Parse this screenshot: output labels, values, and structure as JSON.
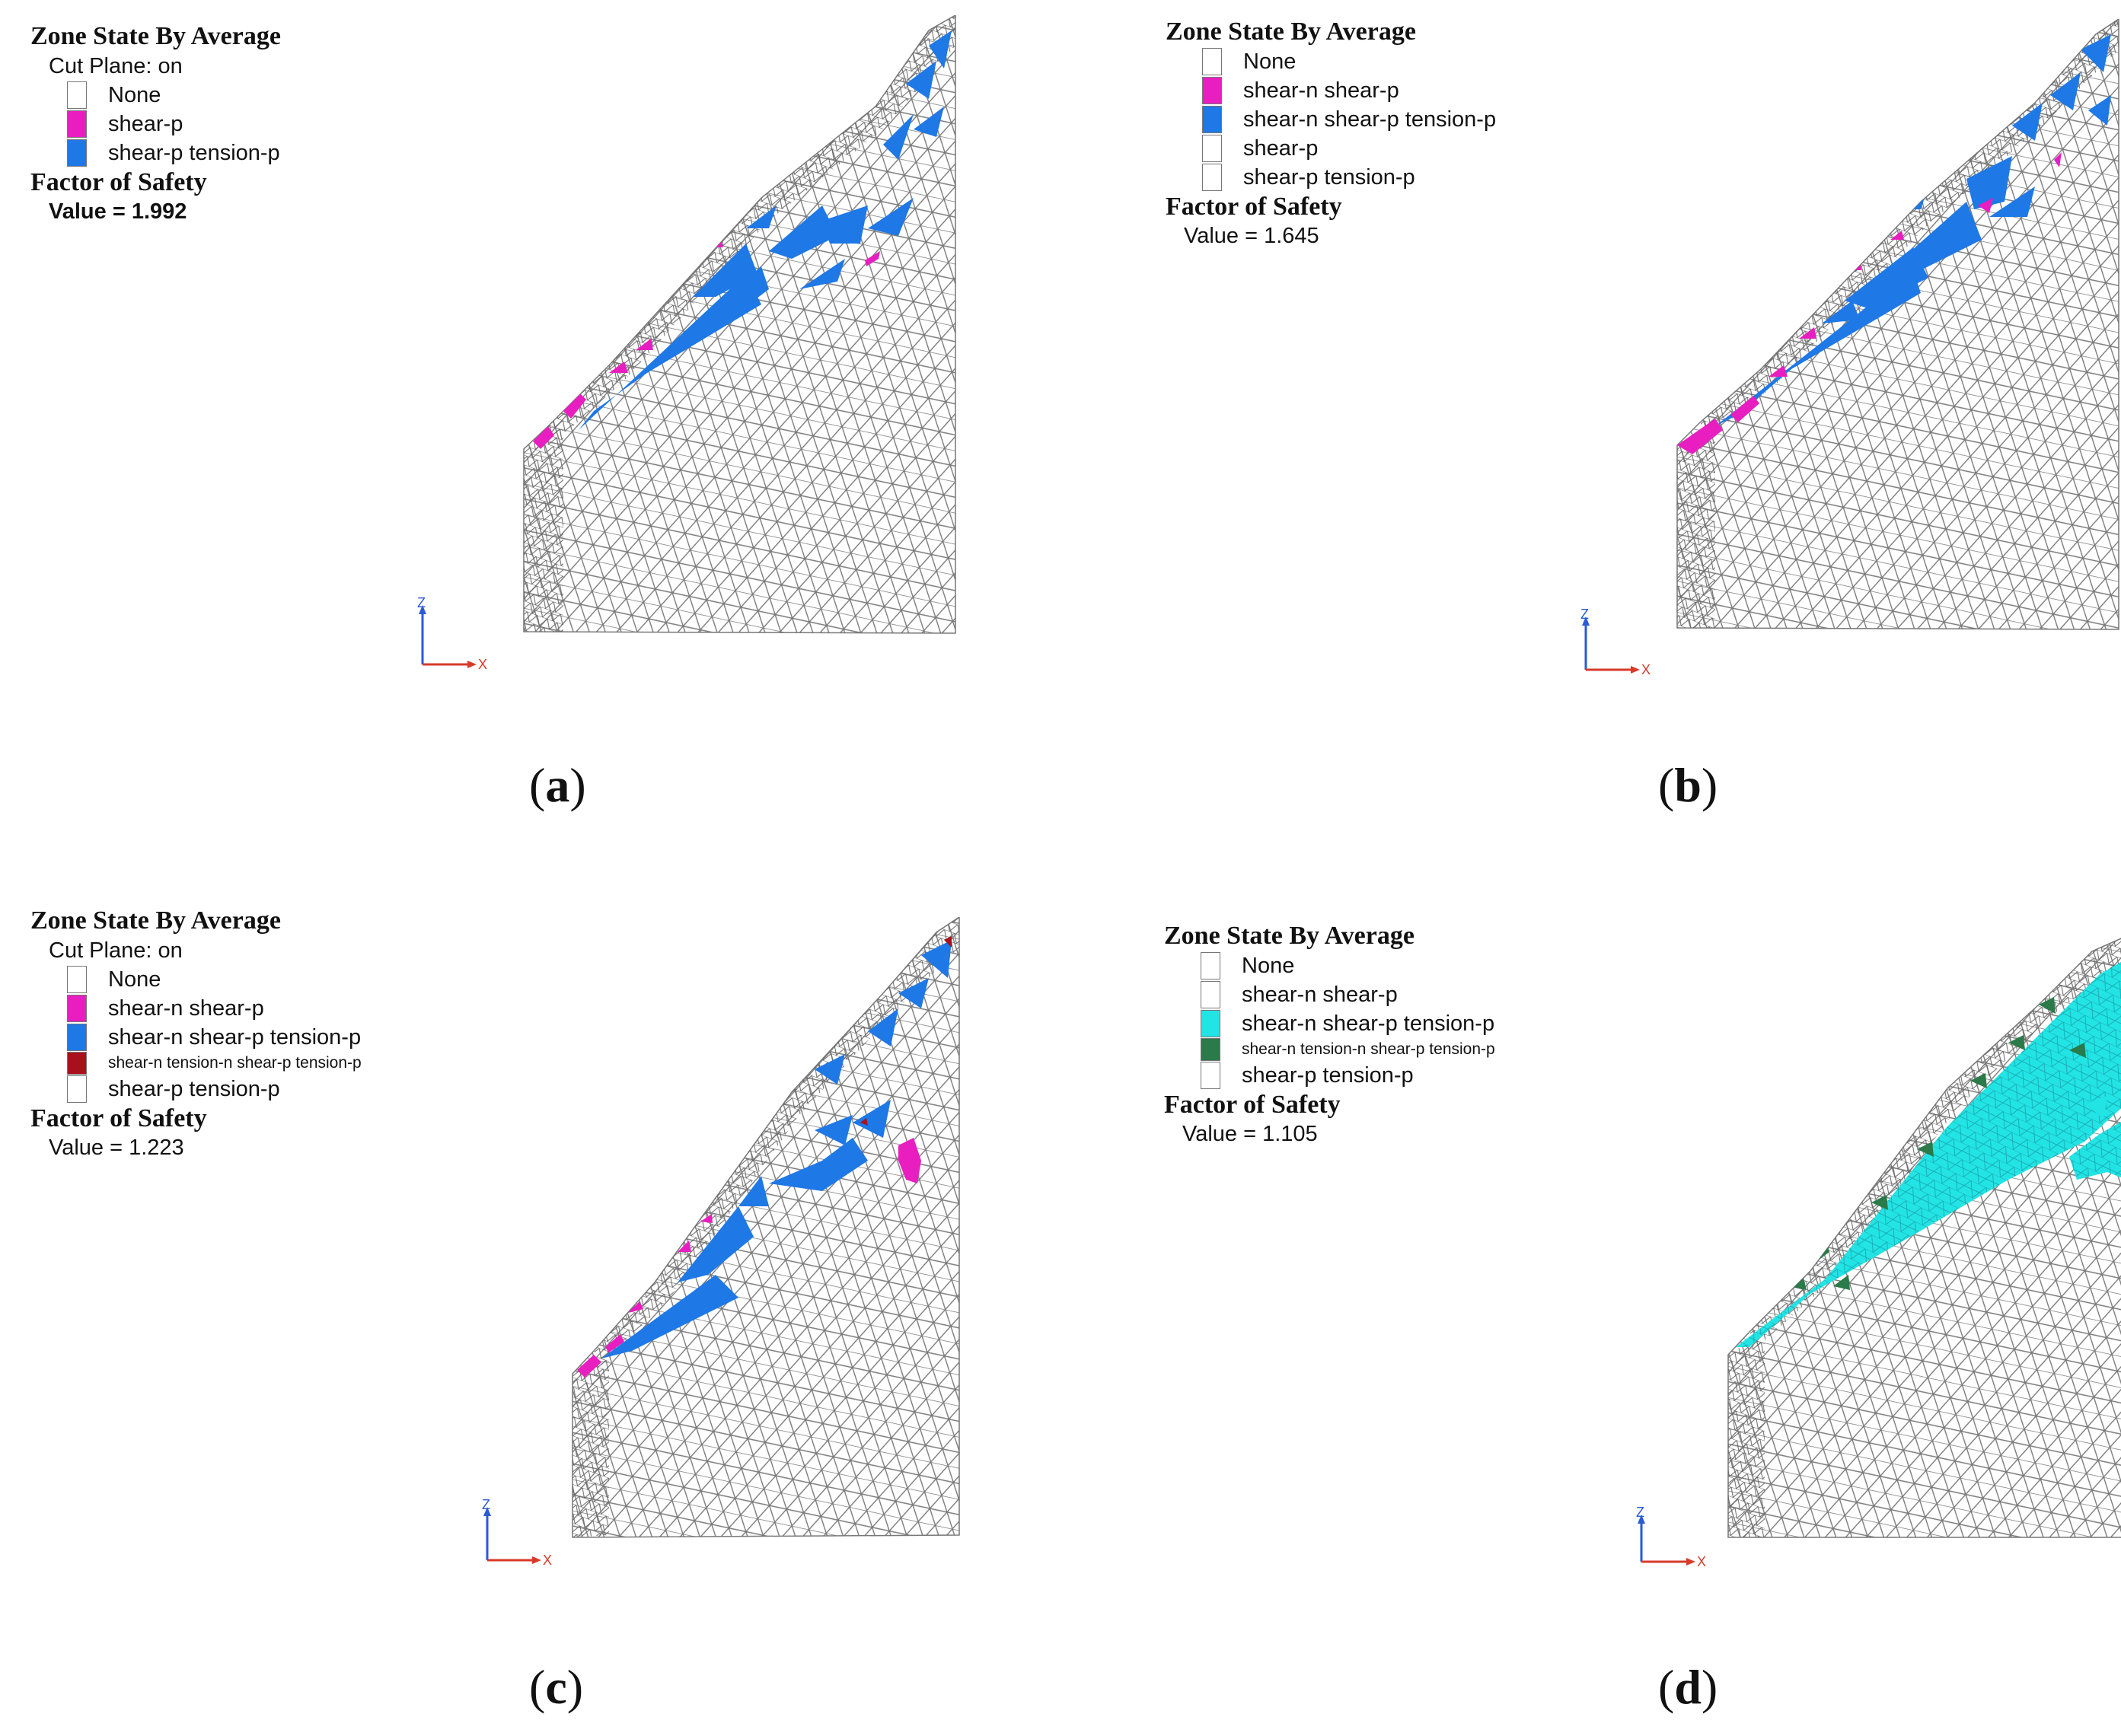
{
  "colors": {
    "magenta": "#e81ec0",
    "blue": "#1e78e6",
    "darkred": "#a8101c",
    "cyan": "#22e4e4",
    "darkgreen": "#2a7a4a",
    "white": "#ffffff"
  },
  "panels": [
    {
      "title": "Zone State By Average",
      "cut_plane": "Cut Plane: on",
      "legend": [
        {
          "label": "None",
          "color": "#ffffff"
        },
        {
          "label": "shear-p",
          "color": "#e81ec0"
        },
        {
          "label": "shear-p tension-p",
          "color": "#1e78e6"
        }
      ],
      "fos_title": "Factor of Safety",
      "fos_value": "Value = 1.992",
      "axis_z": "Z",
      "axis_x": "X",
      "caption": "a"
    },
    {
      "title": "Zone State By Average",
      "cut_plane": "",
      "legend": [
        {
          "label": "None",
          "color": "#ffffff"
        },
        {
          "label": "shear-n shear-p",
          "color": "#e81ec0"
        },
        {
          "label": "shear-n shear-p tension-p",
          "color": "#1e78e6"
        },
        {
          "label": "shear-p",
          "color": "#ffffff"
        },
        {
          "label": "shear-p tension-p",
          "color": "#ffffff"
        }
      ],
      "fos_title": "Factor of Safety",
      "fos_value": "Value = 1.645",
      "axis_z": "Z",
      "axis_x": "X",
      "caption": "b"
    },
    {
      "title": "Zone State By Average",
      "cut_plane": "Cut Plane: on",
      "legend": [
        {
          "label": "None",
          "color": "#ffffff"
        },
        {
          "label": "shear-n shear-p",
          "color": "#e81ec0"
        },
        {
          "label": "shear-n shear-p tension-p",
          "color": "#1e78e6"
        },
        {
          "label": "shear-n tension-n shear-p tension-p",
          "color": "#a8101c"
        },
        {
          "label": "shear-p tension-p",
          "color": "#ffffff"
        }
      ],
      "fos_title": "Factor of Safety",
      "fos_value": "Value = 1.223",
      "axis_z": "Z",
      "axis_x": "X",
      "caption": "c"
    },
    {
      "title": "Zone State By Average",
      "cut_plane": "",
      "legend": [
        {
          "label": "None",
          "color": "#ffffff"
        },
        {
          "label": "shear-n shear-p",
          "color": "#ffffff"
        },
        {
          "label": "shear-n shear-p tension-p",
          "color": "#22e4e4"
        },
        {
          "label": "shear-n tension-n shear-p tension-p",
          "color": "#2a7a4a"
        },
        {
          "label": "shear-p tension-p",
          "color": "#ffffff"
        }
      ],
      "fos_title": "Factor of Safety",
      "fos_value": "Value = 1.105",
      "axis_z": "Z",
      "axis_x": "X",
      "caption": "d"
    }
  ]
}
